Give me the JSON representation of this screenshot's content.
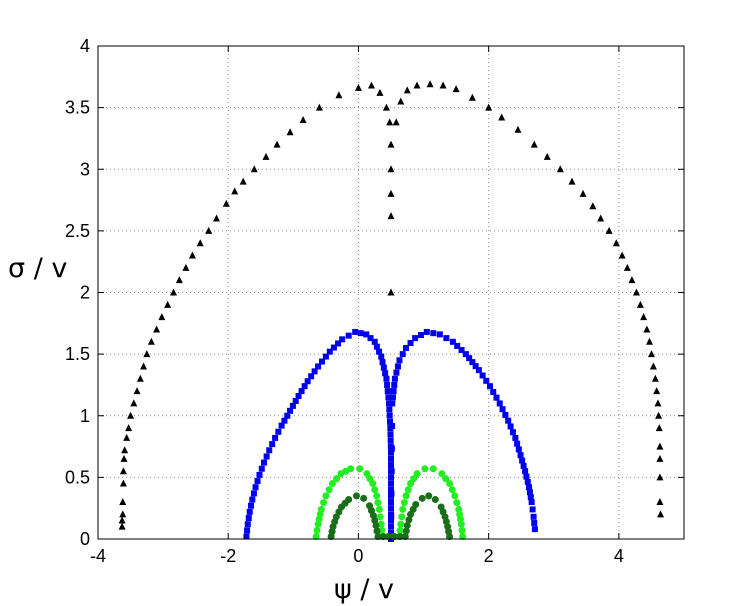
{
  "chart_data": {
    "type": "scatter",
    "title": "",
    "xlabel": "ψ / v",
    "ylabel": "σ / v",
    "xlim": [
      -4,
      5
    ],
    "ylim": [
      0,
      4
    ],
    "xticks": [
      -4,
      -2,
      0,
      2,
      4
    ],
    "yticks": [
      0,
      0.5,
      1,
      1.5,
      2,
      2.5,
      3,
      3.5,
      4
    ],
    "grid": true,
    "legend": "none",
    "series": [
      {
        "marker": "triangle",
        "color": "#000000",
        "points": [
          [
            -3.63,
            0.1
          ],
          [
            -3.63,
            0.15
          ],
          [
            -3.62,
            0.2
          ],
          [
            -3.62,
            0.3
          ],
          [
            -3.61,
            0.45
          ],
          [
            -3.61,
            0.55
          ],
          [
            -3.6,
            0.65
          ],
          [
            -3.59,
            0.72
          ],
          [
            -3.56,
            0.82
          ],
          [
            -3.53,
            0.9
          ],
          [
            -3.5,
            1.0
          ],
          [
            -3.45,
            1.1
          ],
          [
            -3.4,
            1.2
          ],
          [
            -3.35,
            1.3
          ],
          [
            -3.3,
            1.4
          ],
          [
            -3.25,
            1.5
          ],
          [
            -3.18,
            1.6
          ],
          [
            -3.1,
            1.7
          ],
          [
            -3.02,
            1.8
          ],
          [
            -2.93,
            1.9
          ],
          [
            -2.84,
            2.0
          ],
          [
            -2.75,
            2.1
          ],
          [
            -2.65,
            2.2
          ],
          [
            -2.55,
            2.3
          ],
          [
            -2.43,
            2.4
          ],
          [
            -2.3,
            2.5
          ],
          [
            -2.18,
            2.6
          ],
          [
            -2.03,
            2.72
          ],
          [
            -1.9,
            2.82
          ],
          [
            -1.77,
            2.9
          ],
          [
            -1.6,
            3.0
          ],
          [
            -1.42,
            3.1
          ],
          [
            -1.25,
            3.2
          ],
          [
            -1.05,
            3.3
          ],
          [
            -0.85,
            3.4
          ],
          [
            -0.6,
            3.5
          ],
          [
            -0.3,
            3.6
          ],
          [
            0.0,
            3.66
          ],
          [
            0.2,
            3.68
          ],
          [
            0.33,
            3.62
          ],
          [
            0.43,
            3.5
          ],
          [
            0.48,
            3.38
          ],
          [
            0.5,
            3.2
          ],
          [
            0.5,
            3.0
          ],
          [
            0.5,
            2.8
          ],
          [
            0.5,
            2.62
          ],
          [
            0.5,
            2.0
          ],
          [
            0.58,
            3.38
          ],
          [
            0.65,
            3.55
          ],
          [
            0.75,
            3.64
          ],
          [
            0.9,
            3.68
          ],
          [
            1.1,
            3.69
          ],
          [
            1.3,
            3.68
          ],
          [
            1.5,
            3.65
          ],
          [
            1.75,
            3.58
          ],
          [
            2.0,
            3.5
          ],
          [
            2.2,
            3.42
          ],
          [
            2.45,
            3.32
          ],
          [
            2.7,
            3.2
          ],
          [
            2.9,
            3.1
          ],
          [
            3.1,
            3.0
          ],
          [
            3.28,
            2.9
          ],
          [
            3.45,
            2.8
          ],
          [
            3.6,
            2.7
          ],
          [
            3.72,
            2.6
          ],
          [
            3.85,
            2.5
          ],
          [
            3.96,
            2.4
          ],
          [
            4.05,
            2.3
          ],
          [
            4.13,
            2.2
          ],
          [
            4.2,
            2.1
          ],
          [
            4.27,
            2.0
          ],
          [
            4.33,
            1.9
          ],
          [
            4.38,
            1.8
          ],
          [
            4.43,
            1.7
          ],
          [
            4.47,
            1.6
          ],
          [
            4.5,
            1.5
          ],
          [
            4.53,
            1.4
          ],
          [
            4.56,
            1.3
          ],
          [
            4.58,
            1.2
          ],
          [
            4.6,
            1.1
          ],
          [
            4.61,
            1.0
          ],
          [
            4.62,
            0.9
          ],
          [
            4.63,
            0.75
          ],
          [
            4.63,
            0.65
          ],
          [
            4.63,
            0.5
          ],
          [
            4.63,
            0.3
          ],
          [
            4.64,
            0.2
          ]
        ]
      },
      {
        "marker": "square",
        "color": "#0000ee",
        "points": [
          [
            -1.72,
            0.02
          ],
          [
            -1.7,
            0.12
          ],
          [
            -1.67,
            0.22
          ],
          [
            -1.63,
            0.32
          ],
          [
            -1.58,
            0.42
          ],
          [
            -1.52,
            0.52
          ],
          [
            -1.45,
            0.62
          ],
          [
            -1.37,
            0.72
          ],
          [
            -1.28,
            0.82
          ],
          [
            -1.18,
            0.92
          ],
          [
            -1.05,
            1.04
          ],
          [
            -0.92,
            1.16
          ],
          [
            -0.78,
            1.28
          ],
          [
            -0.62,
            1.4
          ],
          [
            -0.44,
            1.52
          ],
          [
            -0.25,
            1.62
          ],
          [
            -0.05,
            1.68
          ],
          [
            0.12,
            1.66
          ],
          [
            0.25,
            1.6
          ],
          [
            0.35,
            1.48
          ],
          [
            0.43,
            1.3
          ],
          [
            0.47,
            1.1
          ],
          [
            0.49,
            0.9
          ],
          [
            0.5,
            0.7
          ],
          [
            0.5,
            0.5
          ],
          [
            0.5,
            0.3
          ],
          [
            0.5,
            0.1
          ],
          [
            0.5,
            0.0
          ],
          [
            0.52,
            1.1
          ],
          [
            0.56,
            1.3
          ],
          [
            0.63,
            1.45
          ],
          [
            0.73,
            1.55
          ],
          [
            0.87,
            1.63
          ],
          [
            1.05,
            1.68
          ],
          [
            1.25,
            1.66
          ],
          [
            1.45,
            1.6
          ],
          [
            1.65,
            1.5
          ],
          [
            1.85,
            1.37
          ],
          [
            2.02,
            1.24
          ],
          [
            2.17,
            1.1
          ],
          [
            2.3,
            0.96
          ],
          [
            2.41,
            0.82
          ],
          [
            2.49,
            0.68
          ],
          [
            2.56,
            0.55
          ],
          [
            2.62,
            0.42
          ],
          [
            2.66,
            0.3
          ],
          [
            2.69,
            0.18
          ],
          [
            2.71,
            0.08
          ]
        ]
      },
      {
        "marker": "circle",
        "color": "#22ee22",
        "points": [
          [
            -0.65,
            0.02
          ],
          [
            -0.62,
            0.12
          ],
          [
            -0.57,
            0.24
          ],
          [
            -0.5,
            0.35
          ],
          [
            -0.4,
            0.45
          ],
          [
            -0.27,
            0.53
          ],
          [
            -0.12,
            0.57
          ],
          [
            0.02,
            0.57
          ],
          [
            0.13,
            0.53
          ],
          [
            0.22,
            0.45
          ],
          [
            0.28,
            0.35
          ],
          [
            0.32,
            0.24
          ],
          [
            0.35,
            0.12
          ],
          [
            0.37,
            0.02
          ],
          [
            0.63,
            0.02
          ],
          [
            0.65,
            0.12
          ],
          [
            0.68,
            0.24
          ],
          [
            0.73,
            0.35
          ],
          [
            0.8,
            0.45
          ],
          [
            0.9,
            0.53
          ],
          [
            1.02,
            0.57
          ],
          [
            1.15,
            0.57
          ],
          [
            1.28,
            0.53
          ],
          [
            1.4,
            0.45
          ],
          [
            1.48,
            0.35
          ],
          [
            1.54,
            0.24
          ],
          [
            1.58,
            0.12
          ],
          [
            1.6,
            0.02
          ]
        ]
      },
      {
        "marker": "circle",
        "color": "#1a6e1a",
        "points": [
          [
            -0.42,
            0.02
          ],
          [
            -0.39,
            0.1
          ],
          [
            -0.34,
            0.18
          ],
          [
            -0.26,
            0.26
          ],
          [
            -0.15,
            0.32
          ],
          [
            -0.03,
            0.35
          ],
          [
            0.08,
            0.33
          ],
          [
            0.17,
            0.27
          ],
          [
            0.23,
            0.19
          ],
          [
            0.27,
            0.11
          ],
          [
            0.3,
            0.02
          ],
          [
            0.72,
            0.02
          ],
          [
            0.75,
            0.11
          ],
          [
            0.8,
            0.2
          ],
          [
            0.88,
            0.28
          ],
          [
            0.98,
            0.33
          ],
          [
            1.08,
            0.35
          ],
          [
            1.18,
            0.32
          ],
          [
            1.27,
            0.26
          ],
          [
            1.33,
            0.18
          ],
          [
            1.37,
            0.1
          ],
          [
            1.4,
            0.02
          ]
        ]
      }
    ]
  }
}
